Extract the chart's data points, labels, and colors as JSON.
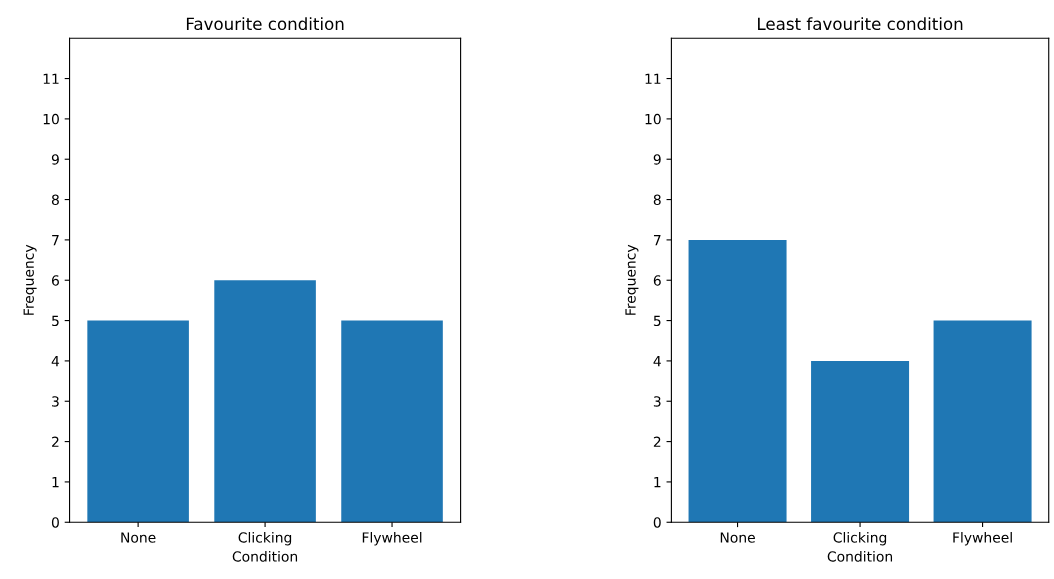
{
  "chart_data": [
    {
      "type": "bar",
      "title": "Favourite condition",
      "xlabel": "Condition",
      "ylabel": "Frequency",
      "categories": [
        "None",
        "Clicking",
        "Flywheel"
      ],
      "values": [
        5,
        6,
        5
      ],
      "color": "#1f77b4",
      "ylim": [
        0,
        12
      ],
      "yticks": [
        0,
        1,
        2,
        3,
        4,
        5,
        6,
        7,
        8,
        9,
        10,
        11
      ],
      "grid": false
    },
    {
      "type": "bar",
      "title": "Least favourite condition",
      "xlabel": "Condition",
      "ylabel": "Frequency",
      "categories": [
        "None",
        "Clicking",
        "Flywheel"
      ],
      "values": [
        7,
        4,
        5
      ],
      "color": "#1f77b4",
      "ylim": [
        0,
        12
      ],
      "yticks": [
        0,
        1,
        2,
        3,
        4,
        5,
        6,
        7,
        8,
        9,
        10,
        11
      ],
      "grid": false
    }
  ]
}
